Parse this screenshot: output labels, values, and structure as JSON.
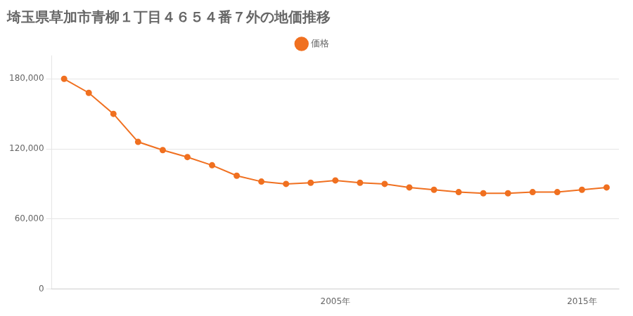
{
  "chart_data": {
    "type": "line",
    "title": "埼玉県草加市青柳１丁目４６５４番７外の地価推移",
    "x": [
      1994,
      1995,
      1996,
      1997,
      1998,
      1999,
      2000,
      2001,
      2002,
      2003,
      2004,
      2005,
      2006,
      2007,
      2008,
      2009,
      2010,
      2011,
      2012,
      2013,
      2014,
      2015,
      2016
    ],
    "series": [
      {
        "name": "価格",
        "color": "#f07020",
        "marker": "o",
        "values": [
          180000,
          168000,
          150000,
          126000,
          119000,
          113000,
          106000,
          97000,
          92000,
          90000,
          91000,
          93000,
          91000,
          90000,
          87000,
          85000,
          83000,
          82000,
          82000,
          83000,
          83000,
          85000,
          87000
        ]
      }
    ],
    "xlim": [
      1993.5,
      2016.5
    ],
    "xticks": [
      {
        "value": 2005,
        "label": "2005年"
      },
      {
        "value": 2015,
        "label": "2015年"
      }
    ],
    "ylim": [
      0,
      200000
    ],
    "yticks": [
      0,
      {
        "value": 60000,
        "label": "60,000"
      },
      {
        "value": 120000,
        "label": "120,000"
      },
      {
        "value": 180000,
        "label": "180,000"
      }
    ],
    "grid": "y",
    "legend": "top"
  }
}
